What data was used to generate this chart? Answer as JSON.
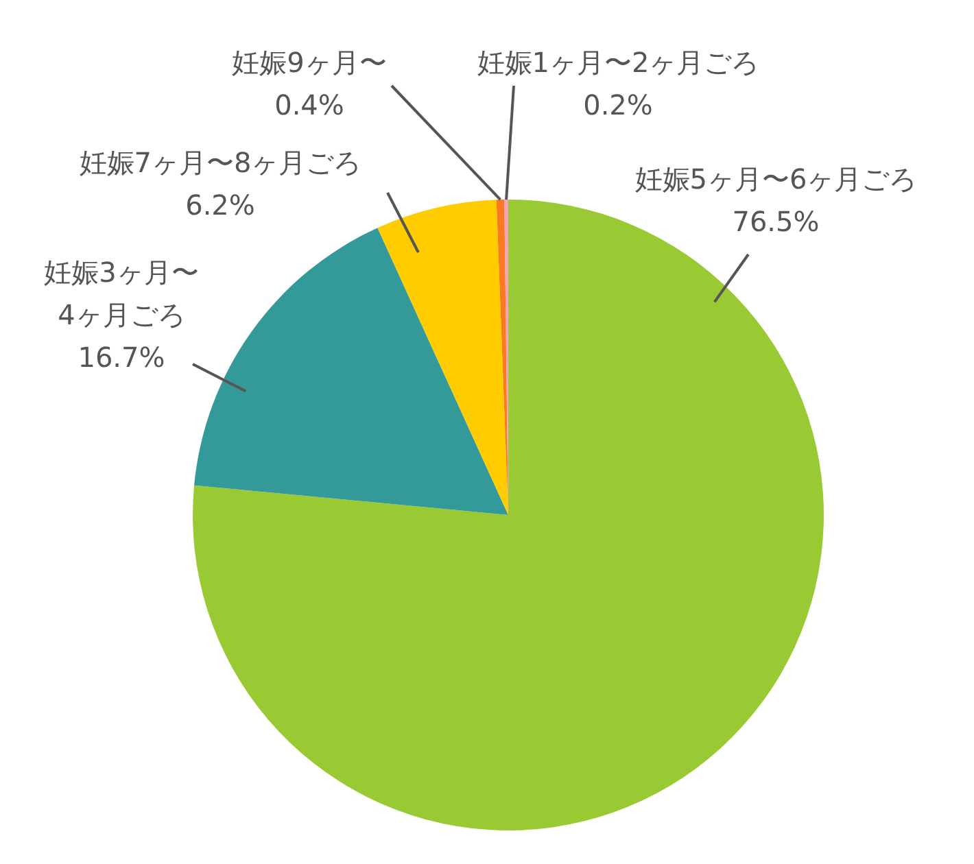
{
  "chart_data": {
    "type": "pie",
    "categories": [
      "妊娠5ヶ月〜6ヶ月ごろ",
      "妊娠3ヶ月〜4ヶ月ごろ",
      "妊娠7ヶ月〜8ヶ月ごろ",
      "妊娠9ヶ月〜",
      "妊娠1ヶ月〜2ヶ月ごろ"
    ],
    "values": [
      76.5,
      16.7,
      6.2,
      0.4,
      0.2
    ],
    "value_labels": [
      "76.5%",
      "16.7%",
      "6.2%",
      "0.4%",
      "0.2%"
    ],
    "colors": [
      "#9aca33",
      "#339a99",
      "#ffcc00",
      "#fa7a20",
      "#f7a1bb"
    ]
  }
}
